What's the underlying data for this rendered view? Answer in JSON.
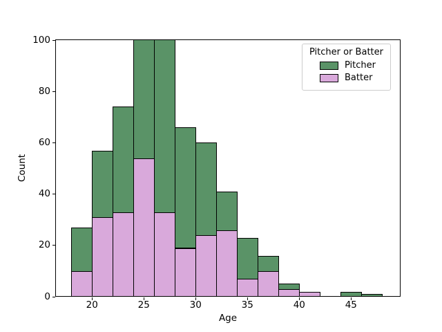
{
  "chart_data": {
    "type": "bar",
    "subtype": "stacked-histogram",
    "title": "",
    "xlabel": "Age",
    "ylabel": "Count",
    "x_ticks": [
      20,
      25,
      30,
      35,
      40,
      45
    ],
    "y_ticks": [
      0,
      20,
      40,
      60,
      80,
      100
    ],
    "xlim": [
      16.45,
      49.78
    ],
    "ylim": [
      0,
      100
    ],
    "grid": false,
    "bin_width": 2,
    "bin_starts": [
      18,
      20,
      22,
      24,
      26,
      28,
      30,
      32,
      34,
      36,
      38,
      40,
      42,
      44,
      46
    ],
    "series": [
      {
        "name": "Batter",
        "color": "#D9A9DB",
        "values": [
          10,
          31,
          33,
          54,
          33,
          19,
          24,
          26,
          7,
          10,
          3,
          2,
          0,
          0,
          0
        ]
      },
      {
        "name": "Pitcher",
        "color": "#5A9367",
        "values": [
          17,
          26,
          41,
          46,
          67,
          47,
          36,
          15,
          16,
          6,
          2,
          0,
          0,
          2,
          1
        ]
      }
    ],
    "stack_order_bottom_to_top": [
      "Batter",
      "Pitcher"
    ],
    "bars_clipped_at_ymax": [
      24,
      26
    ],
    "edge_color": "#000000",
    "legend": {
      "title": "Pitcher or Batter",
      "position": "upper right",
      "entries": [
        {
          "label": "Pitcher",
          "color": "#5A9367"
        },
        {
          "label": "Batter",
          "color": "#D9A9DB"
        }
      ]
    }
  }
}
